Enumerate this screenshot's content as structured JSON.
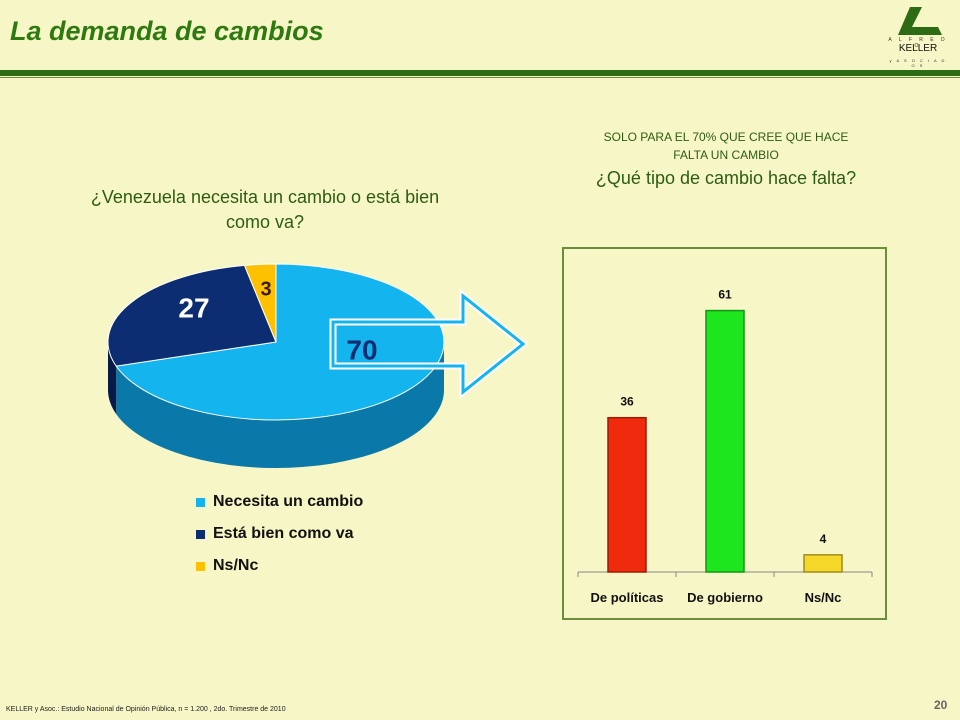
{
  "header": {
    "title": "La demanda de cambios"
  },
  "logo": {
    "top_text": "A L F R E D O",
    "name": "KELLER",
    "sub_text": "y A S O C I A D O S"
  },
  "colors": {
    "green_title": "#2e7a10",
    "green_rule": "#2e6b15",
    "background": "#f6f6c6"
  },
  "left": {
    "question": "¿Venezuela necesita un cambio o está bien como va?"
  },
  "right": {
    "note": "SOLO PARA EL 70% QUE CREE QUE HACE FALTA UN CAMBIO",
    "question": "¿Qué tipo de cambio hace falta?"
  },
  "chart_data": [
    {
      "type": "pie",
      "categories": [
        "Necesita un cambio",
        "Está bien como va",
        "Ns/Nc"
      ],
      "values": [
        70,
        27,
        3
      ],
      "colors": [
        "#14b4ee",
        "#0d2d72",
        "#ffc000"
      ],
      "labels": [
        "70",
        "27",
        "3"
      ],
      "legend": "bottom"
    },
    {
      "type": "bar",
      "categories": [
        "De políticas",
        "De gobierno",
        "Ns/Nc"
      ],
      "values": [
        36,
        61,
        4
      ],
      "labels": [
        "36",
        "61",
        "4"
      ],
      "colors": [
        "#f02a0c",
        "#1ee61e",
        "#f6d82a"
      ],
      "ylim": [
        0,
        70
      ]
    }
  ],
  "footer": {
    "source": "KELLER y Asoc.: Estudio Nacional de Opinión Pública, n = 1.200 , 2do. Trimestre de 2010",
    "page": "20"
  }
}
